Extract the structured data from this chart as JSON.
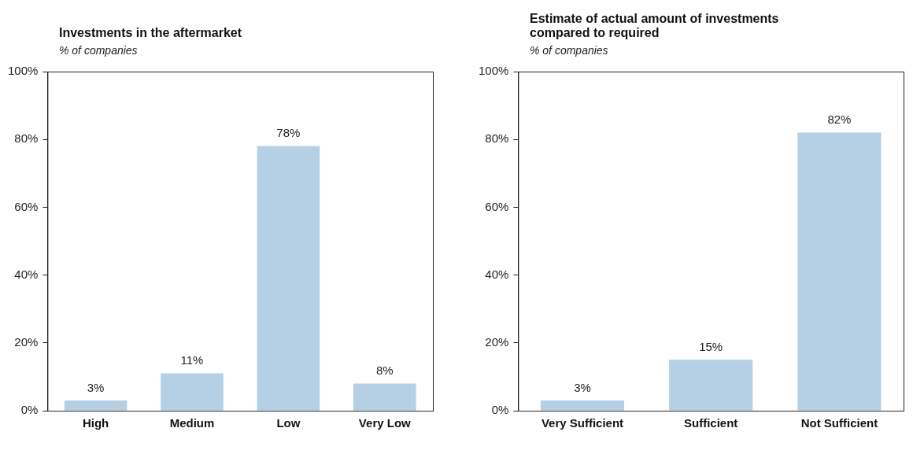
{
  "chart_data": [
    {
      "type": "bar",
      "title": "Investments in the aftermarket",
      "subtitle": "% of companies",
      "categories": [
        "High",
        "Medium",
        "Low",
        "Very Low"
      ],
      "values": [
        3,
        11,
        78,
        8
      ],
      "value_labels": [
        "3%",
        "11%",
        "78%",
        "8%"
      ],
      "color": "#b5d0e4",
      "ylim": [
        0,
        100
      ],
      "yticks": [
        {
          "value": 0,
          "label": "0%"
        },
        {
          "value": 20,
          "label": "20%"
        },
        {
          "value": 40,
          "label": "40%"
        },
        {
          "value": 60,
          "label": "60%"
        },
        {
          "value": 80,
          "label": "80%"
        },
        {
          "value": 100,
          "label": "100%"
        }
      ],
      "grid": false,
      "legend": false
    },
    {
      "type": "bar",
      "title": "Estimate of actual amount of investments\ncompared to required",
      "subtitle": "% of companies",
      "categories": [
        "Very Sufficient",
        "Sufficient",
        "Not Sufficient"
      ],
      "values": [
        3,
        15,
        82
      ],
      "value_labels": [
        "3%",
        "15%",
        "82%"
      ],
      "color": "#b5d0e4",
      "ylim": [
        0,
        100
      ],
      "yticks": [
        {
          "value": 0,
          "label": "0%"
        },
        {
          "value": 20,
          "label": "20%"
        },
        {
          "value": 40,
          "label": "40%"
        },
        {
          "value": 60,
          "label": "60%"
        },
        {
          "value": 80,
          "label": "80%"
        },
        {
          "value": 100,
          "label": "100%"
        }
      ],
      "grid": false,
      "legend": false
    }
  ]
}
